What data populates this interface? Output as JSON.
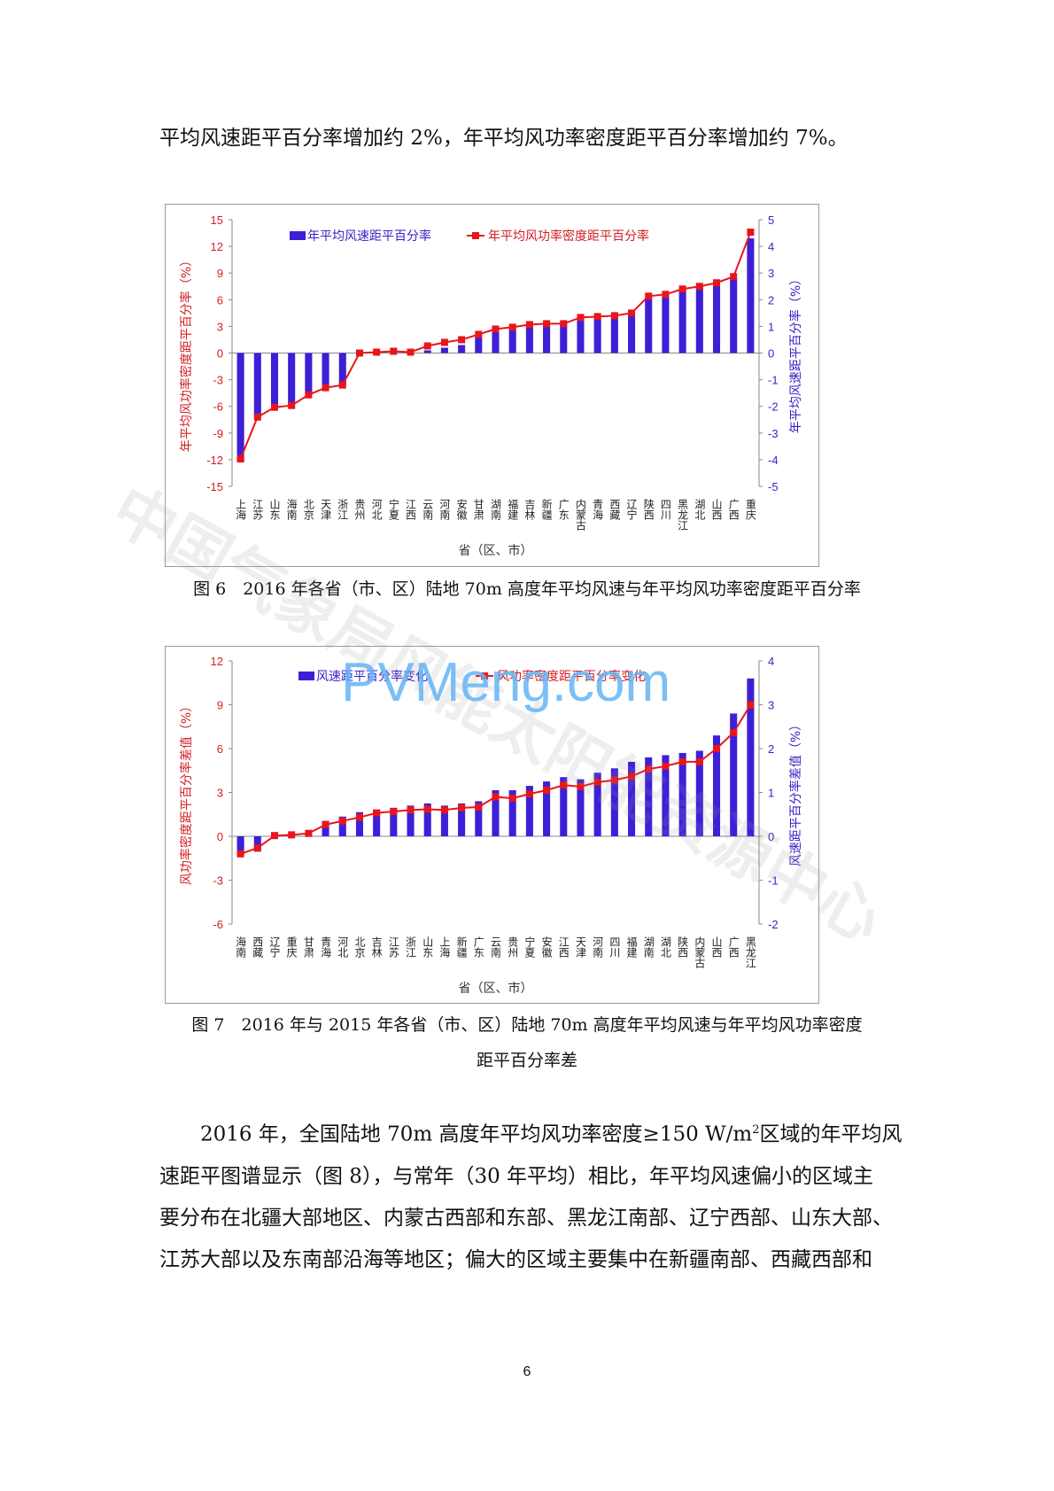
{
  "intro_text": "平均风速距平百分率增加约 2%，年平均风功率密度距平百分率增加约 7%。",
  "figure6_caption": "图 6　2016 年各省（市、区）陆地 70m 高度年平均风速与年平均风功率密度距平百分率",
  "figure7_caption_line1": "图 7　2016 年与 2015 年各省（市、区）陆地 70m 高度年平均风速与年平均风功率密度",
  "figure7_caption_line2": "距平百分率差",
  "body_text": {
    "line1_before": "2016 年，全国陆地 70m 高度年平均风功率密度≥150 W/m",
    "line1_sup": "2",
    "line1_after": "区域的年平均风",
    "line2": "速距平图谱显示（图 8），与常年（30 年平均）相比，年平均风速偏小的区域主",
    "line3": "要分布在北疆大部地区、内蒙古西部和东部、黑龙江南部、辽宁西部、山东大部、",
    "line4": "江苏大部以及东南部沿海等地区；偏大的区域主要集中在新疆南部、西藏西部和"
  },
  "page_number": "6",
  "watermarks": {
    "diagonal": "中国气象局风能太阳能资源中心",
    "site": "PVMeng.com"
  },
  "colors": {
    "bar": "#3d1fd8",
    "line": "#e8151b",
    "left_axis": "#d21e23",
    "right_axis": "#3a1fc6"
  },
  "chart_data": [
    {
      "type": "bar",
      "categories": [
        "上海",
        "江苏",
        "山东",
        "海南",
        "北京",
        "天津",
        "浙江",
        "贵州",
        "河北",
        "宁夏",
        "江西",
        "云南",
        "河南",
        "安徽",
        "甘肃",
        "湖南",
        "福建",
        "吉林",
        "新疆",
        "广东",
        "内蒙古",
        "青海",
        "西藏",
        "辽宁",
        "陕西",
        "四川",
        "黑龙江",
        "湖北",
        "山西",
        "广西",
        "重庆"
      ],
      "series": [
        {
          "name": "年平均风速距平百分率",
          "axis": "right",
          "render": "bar",
          "values": [
            -4.1,
            -2.4,
            -2.0,
            -1.9,
            -1.5,
            -1.3,
            -1.2,
            0.0,
            0.0,
            0.0,
            0.0,
            0.1,
            0.2,
            0.3,
            0.6,
            0.8,
            0.9,
            1.0,
            1.1,
            1.1,
            1.3,
            1.3,
            1.3,
            1.5,
            2.1,
            2.2,
            2.4,
            2.5,
            2.6,
            2.8,
            4.3
          ]
        },
        {
          "name": "年平均风功率密度距平百分率",
          "axis": "left",
          "render": "line",
          "values": [
            -11.9,
            -7.2,
            -6.1,
            -5.9,
            -4.7,
            -3.9,
            -3.6,
            0.0,
            0.1,
            0.2,
            0.1,
            0.8,
            1.2,
            1.5,
            2.1,
            2.7,
            2.9,
            3.2,
            3.3,
            3.3,
            4.0,
            4.1,
            4.2,
            4.5,
            6.4,
            6.6,
            7.2,
            7.5,
            7.9,
            8.6,
            13.6
          ]
        }
      ],
      "y_left": {
        "label": "年平均风功率密度距平百分率（%）",
        "ticks": [
          15,
          12,
          9,
          6,
          3,
          0,
          -3,
          -6,
          -9,
          -12,
          -15
        ],
        "ylim": [
          -15,
          15
        ]
      },
      "y_right": {
        "label": "年平均风速距平百分率（%）",
        "ticks": [
          5,
          4,
          3,
          2,
          1,
          0,
          -1,
          -2,
          -3,
          -4,
          -5
        ],
        "ylim": [
          -5,
          5
        ]
      },
      "xlabel": "省（区、市）",
      "legend": "top-center"
    },
    {
      "type": "bar",
      "categories": [
        "海南",
        "西藏",
        "辽宁",
        "重庆",
        "甘肃",
        "青海",
        "河北",
        "北京",
        "吉林",
        "江苏",
        "浙江",
        "山东",
        "上海",
        "新疆",
        "广东",
        "云南",
        "贵州",
        "宁夏",
        "安徽",
        "江西",
        "天津",
        "河南",
        "四川",
        "福建",
        "湖南",
        "湖北",
        "陕西",
        "内蒙古",
        "山西",
        "广西",
        "黑龙江"
      ],
      "series": [
        {
          "name": "风速距平百分率变化",
          "axis": "right",
          "render": "bar",
          "values": [
            -0.4,
            -0.35,
            0.0,
            0.0,
            0.05,
            0.35,
            0.45,
            0.55,
            0.6,
            0.65,
            0.7,
            0.75,
            0.7,
            0.75,
            0.8,
            1.05,
            1.05,
            1.15,
            1.25,
            1.35,
            1.3,
            1.45,
            1.55,
            1.7,
            1.8,
            1.85,
            1.9,
            1.95,
            2.3,
            2.8,
            3.6
          ]
        },
        {
          "name": "风功率密度距平百分率变化",
          "axis": "left",
          "render": "line",
          "values": [
            -1.2,
            -0.8,
            0.05,
            0.1,
            0.2,
            0.8,
            1.05,
            1.3,
            1.6,
            1.7,
            1.8,
            1.85,
            1.8,
            1.95,
            2.0,
            2.7,
            2.6,
            2.9,
            3.15,
            3.5,
            3.4,
            3.7,
            3.85,
            4.1,
            4.6,
            4.8,
            5.1,
            5.1,
            6.0,
            7.1,
            9.0
          ]
        }
      ],
      "y_left": {
        "label": "风功率密度距平百分率差值（%）",
        "ticks": [
          12,
          9,
          6,
          3,
          0,
          -3,
          -6
        ],
        "ylim": [
          -6,
          12
        ]
      },
      "y_right": {
        "label": "风速距平百分率差值（%）",
        "ticks": [
          4,
          3,
          2,
          1,
          0,
          -1,
          -2
        ],
        "ylim": [
          -2,
          4
        ]
      },
      "xlabel": "省（区、市）",
      "legend": "top-center"
    }
  ]
}
